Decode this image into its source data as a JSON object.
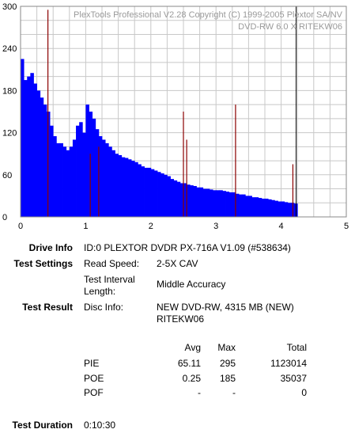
{
  "watermark": {
    "line1": "PlexTools Professional V2.28 Copyright (C) 1999-2005 Plextor SA/NV",
    "line2": "DVD-RW    6.0 X    RITEKW06"
  },
  "chart_data": {
    "type": "bar",
    "xlim": [
      0,
      5
    ],
    "ylim": [
      0,
      300
    ],
    "x_ticks": [
      "0",
      "1",
      "2",
      "3",
      "4",
      "5"
    ],
    "y_ticks": [
      "300",
      "240",
      "180",
      "120",
      "60",
      "0"
    ],
    "grid": true,
    "series": [
      {
        "name": "PIE",
        "color": "#0000ff",
        "x": [
          0.0,
          0.05,
          0.1,
          0.15,
          0.2,
          0.25,
          0.3,
          0.35,
          0.4,
          0.45,
          0.5,
          0.55,
          0.6,
          0.65,
          0.7,
          0.75,
          0.8,
          0.85,
          0.9,
          0.95,
          1.0,
          1.05,
          1.1,
          1.15,
          1.2,
          1.25,
          1.3,
          1.35,
          1.4,
          1.45,
          1.5,
          1.55,
          1.6,
          1.65,
          1.7,
          1.75,
          1.8,
          1.85,
          1.9,
          1.95,
          2.0,
          2.05,
          2.1,
          2.15,
          2.2,
          2.25,
          2.3,
          2.35,
          2.4,
          2.45,
          2.5,
          2.55,
          2.6,
          2.65,
          2.7,
          2.75,
          2.8,
          2.85,
          2.9,
          2.95,
          3.0,
          3.05,
          3.1,
          3.15,
          3.2,
          3.25,
          3.3,
          3.35,
          3.4,
          3.45,
          3.5,
          3.55,
          3.6,
          3.65,
          3.7,
          3.75,
          3.8,
          3.85,
          3.9,
          3.95,
          4.0,
          4.05,
          4.1,
          4.15,
          4.2
        ],
        "y": [
          225,
          195,
          200,
          205,
          190,
          180,
          170,
          160,
          150,
          130,
          115,
          105,
          105,
          100,
          95,
          100,
          110,
          130,
          135,
          120,
          160,
          150,
          140,
          125,
          115,
          110,
          105,
          100,
          95,
          90,
          88,
          85,
          84,
          82,
          80,
          78,
          75,
          72,
          70,
          70,
          68,
          66,
          64,
          62,
          60,
          58,
          54,
          52,
          50,
          48,
          48,
          46,
          45,
          44,
          42,
          42,
          40,
          40,
          39,
          38,
          38,
          38,
          37,
          36,
          35,
          35,
          33,
          32,
          32,
          30,
          30,
          28,
          28,
          27,
          26,
          26,
          25,
          24,
          23,
          22,
          22,
          21,
          20,
          20,
          19
        ]
      },
      {
        "name": "PIE max",
        "color": "#8b0000",
        "x": [
          0.42,
          1.07,
          1.2,
          2.5,
          2.55,
          3.3,
          4.18
        ],
        "y": [
          295,
          90,
          100,
          150,
          110,
          160,
          75
        ]
      }
    ],
    "marker_x": 4.23
  },
  "info": {
    "drive_info_label": "Drive Info",
    "drive_info_value": "ID:0 PLEXTOR DVDR PX-716A V1.09 (#538634)",
    "test_settings_label": "Test Settings",
    "read_speed_label": "Read Speed:",
    "read_speed_value": "2-5X CAV",
    "interval_label_1": "Test Interval",
    "interval_label_2": "Length:",
    "interval_value": "Middle Accuracy",
    "test_result_label": "Test Result",
    "disc_info_label": "Disc Info:",
    "disc_info_line1": "NEW DVD-RW, 4315 MB (NEW)",
    "disc_info_line2": "RITEKW06",
    "duration_label": "Test Duration",
    "duration_value": "0:10:30"
  },
  "results": {
    "headers": [
      "Avg",
      "Max",
      "Total"
    ],
    "rows": [
      {
        "name": "PIE",
        "avg": "65.11",
        "max": "295",
        "total": "1123014"
      },
      {
        "name": "POE",
        "avg": "0.25",
        "max": "185",
        "total": "35037"
      },
      {
        "name": "POF",
        "avg": "-",
        "max": "-",
        "total": "0"
      }
    ]
  }
}
